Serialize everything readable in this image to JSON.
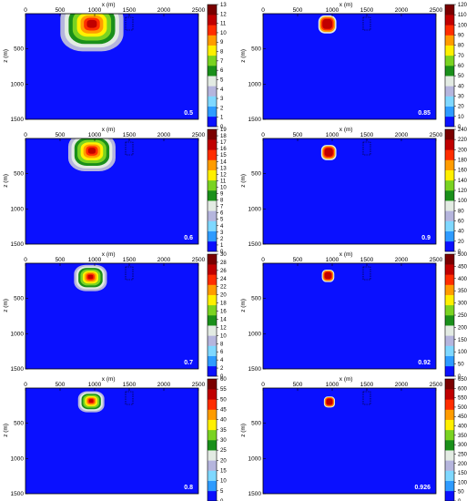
{
  "colors": {
    "background": "#0a10ff",
    "frame": "#000000",
    "annotation": "#ffffff",
    "colorbar": [
      "#0a10ff",
      "#2e9bff",
      "#7fd8ff",
      "#b5b5dd",
      "#e3ebe3",
      "#1a8f1a",
      "#7ad321",
      "#fff000",
      "#ff9c00",
      "#ff2d00",
      "#c00000",
      "#7a0000"
    ]
  },
  "axes": {
    "xlabel": "x (m)",
    "ylabel": "z (m)",
    "xticks": [
      "0",
      "500",
      "1000",
      "1500",
      "2000",
      "2500"
    ],
    "zticks": [
      "500",
      "1000",
      "1500"
    ]
  },
  "panels": [
    {
      "label": "0.5",
      "scale_ticks": [
        "0",
        "1",
        "2",
        "3",
        "4",
        "5",
        "6",
        "7",
        "8",
        "9",
        "10",
        "11",
        "12",
        "13"
      ],
      "plume": {
        "x": 960,
        "z": 140,
        "r": 480,
        "shape": "wide"
      }
    },
    {
      "label": "0.6",
      "scale_ticks": [
        "0",
        "1",
        "2",
        "3",
        "4",
        "5",
        "6",
        "7",
        "8",
        "9",
        "10",
        "11",
        "12",
        "13",
        "14",
        "15",
        "16",
        "17",
        "18",
        "19"
      ],
      "plume": {
        "x": 960,
        "z": 170,
        "r": 360,
        "shape": "wide"
      }
    },
    {
      "label": "0.7",
      "scale_ticks": [
        "0",
        "2",
        "4",
        "6",
        "8",
        "10",
        "12",
        "14",
        "16",
        "18",
        "20",
        "22",
        "24",
        "26",
        "28",
        "30"
      ],
      "plume": {
        "x": 940,
        "z": 190,
        "r": 250,
        "shape": "wide"
      }
    },
    {
      "label": "0.8",
      "scale_ticks": [
        "0",
        "5",
        "10",
        "15",
        "20",
        "25",
        "30",
        "35",
        "40",
        "45",
        "50",
        "55",
        "60"
      ],
      "plume": {
        "x": 950,
        "z": 180,
        "r": 200,
        "shape": "wide"
      }
    },
    {
      "label": "0.85",
      "scale_ticks": [
        "0",
        "10",
        "20",
        "30",
        "40",
        "50",
        "60",
        "70",
        "80",
        "90",
        "100",
        "110",
        "120"
      ],
      "plume": {
        "x": 930,
        "z": 140,
        "r": 130,
        "shape": "block"
      }
    },
    {
      "label": "0.9",
      "scale_ticks": [
        "0",
        "20",
        "40",
        "60",
        "80",
        "100",
        "120",
        "140",
        "160",
        "180",
        "200",
        "220",
        "240"
      ],
      "plume": {
        "x": 950,
        "z": 190,
        "r": 110,
        "shape": "block"
      }
    },
    {
      "label": "0.92",
      "scale_ticks": [
        "0",
        "50",
        "100",
        "150",
        "200",
        "250",
        "300",
        "350",
        "400",
        "450",
        "500"
      ],
      "plume": {
        "x": 940,
        "z": 170,
        "r": 90,
        "shape": "block"
      }
    },
    {
      "label": "0.926",
      "scale_ticks": [
        "0",
        "50",
        "100",
        "150",
        "200",
        "250",
        "300",
        "350",
        "400",
        "450",
        "500",
        "550",
        "600",
        "650"
      ],
      "plume": {
        "x": 960,
        "z": 190,
        "r": 80,
        "shape": "block"
      }
    }
  ]
}
